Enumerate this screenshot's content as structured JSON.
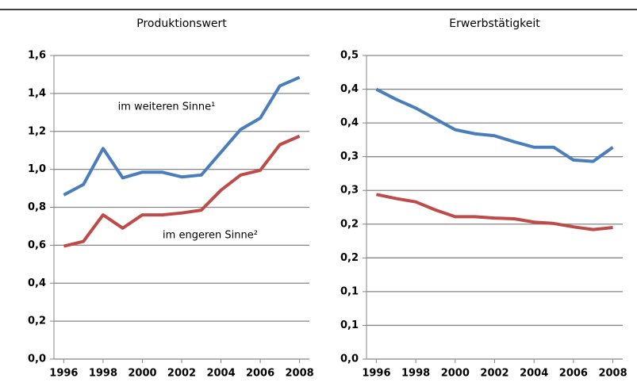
{
  "chart_data": [
    {
      "type": "line",
      "title": "Produktionswert",
      "x": [
        1996,
        1997,
        1998,
        1999,
        2000,
        2001,
        2002,
        2003,
        2004,
        2005,
        2006,
        2007,
        2008
      ],
      "xlim": [
        1995.5,
        2008.5
      ],
      "xticks": [
        1996,
        1998,
        2000,
        2002,
        2004,
        2006,
        2008
      ],
      "ylim": [
        0,
        1.6
      ],
      "yticks": [
        {
          "value": 0,
          "label": "0,0"
        },
        {
          "value": 0.2,
          "label": "0,2"
        },
        {
          "value": 0.4,
          "label": "0,4"
        },
        {
          "value": 0.6,
          "label": "0,6"
        },
        {
          "value": 0.8,
          "label": "0,8"
        },
        {
          "value": 1.0,
          "label": "1,0"
        },
        {
          "value": 1.2,
          "label": "1,2"
        },
        {
          "value": 1.4,
          "label": "1,4"
        },
        {
          "value": 1.6,
          "label": "1,6"
        }
      ],
      "grid": true,
      "series": [
        {
          "name": "im weiteren Sinne¹",
          "color": "#4a7ebb",
          "values": [
            0.865,
            0.92,
            1.11,
            0.955,
            0.985,
            0.985,
            0.96,
            0.97,
            1.09,
            1.21,
            1.27,
            1.44,
            1.485
          ]
        },
        {
          "name": "im engeren Sinne²",
          "color": "#be4b48",
          "values": [
            0.595,
            0.62,
            0.76,
            0.69,
            0.76,
            0.76,
            0.77,
            0.785,
            0.89,
            0.97,
            0.995,
            1.13,
            1.175
          ]
        }
      ]
    },
    {
      "type": "line",
      "title": "Erwerbstätigkeit",
      "x": [
        1996,
        1997,
        1998,
        1999,
        2000,
        2001,
        2002,
        2003,
        2004,
        2005,
        2006,
        2007,
        2008
      ],
      "xlim": [
        1995.5,
        2008.5
      ],
      "xticks": [
        1996,
        1998,
        2000,
        2002,
        2004,
        2006,
        2008
      ],
      "ylim": [
        0,
        0.45
      ],
      "yticks": [
        {
          "value": 0,
          "label": "0,0"
        },
        {
          "value": 0.05,
          "label": "0,1"
        },
        {
          "value": 0.1,
          "label": "0,1"
        },
        {
          "value": 0.15,
          "label": "0,2"
        },
        {
          "value": 0.2,
          "label": "0,2"
        },
        {
          "value": 0.25,
          "label": "0,3"
        },
        {
          "value": 0.3,
          "label": "0,3"
        },
        {
          "value": 0.35,
          "label": "0,4"
        },
        {
          "value": 0.4,
          "label": "0,4"
        },
        {
          "value": 0.45,
          "label": "0,5"
        }
      ],
      "grid": true,
      "series": [
        {
          "color": "#4a7ebb",
          "values": [
            0.4,
            0.385,
            0.372,
            0.356,
            0.34,
            0.334,
            0.331,
            0.322,
            0.314,
            0.314,
            0.295,
            0.293,
            0.314
          ]
        },
        {
          "color": "#be4b48",
          "values": [
            0.244,
            0.238,
            0.233,
            0.221,
            0.211,
            0.211,
            0.209,
            0.208,
            0.203,
            0.201,
            0.196,
            0.192,
            0.195
          ]
        }
      ]
    }
  ]
}
